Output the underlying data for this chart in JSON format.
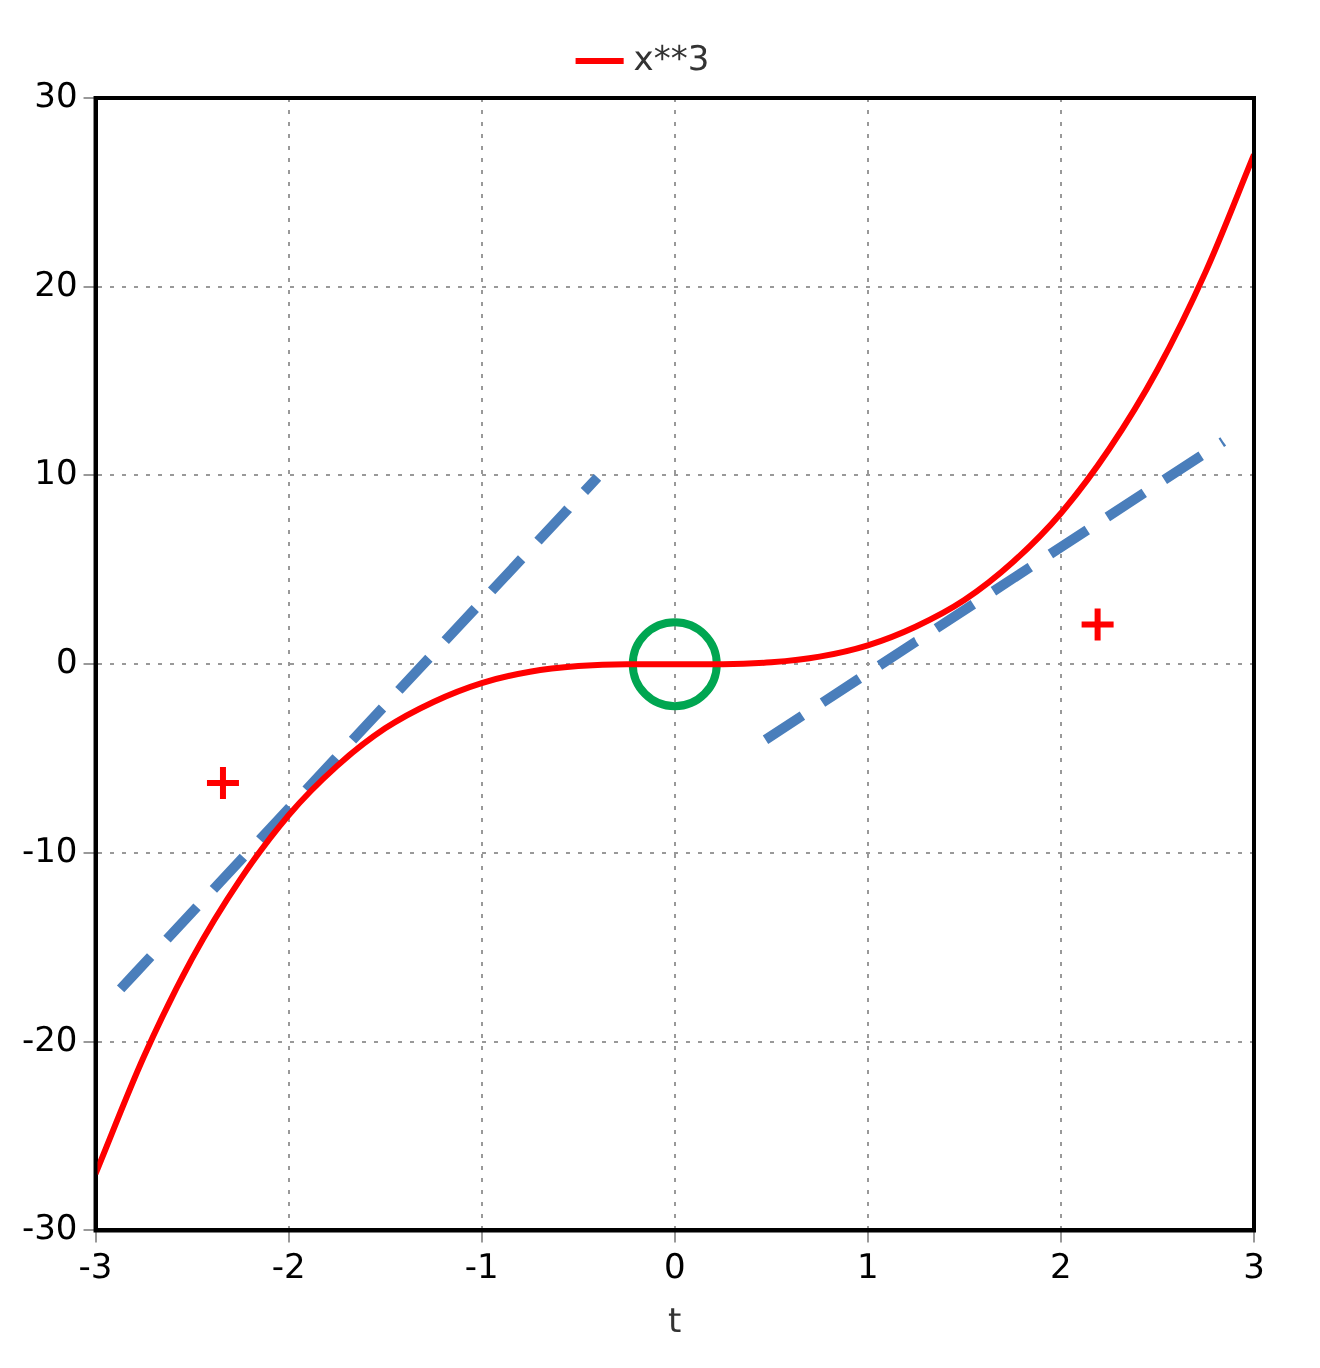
{
  "chart_data": {
    "type": "line",
    "xlabel": "t",
    "x": [
      -3,
      -2.75,
      -2.5,
      -2.25,
      -2,
      -1.75,
      -1.5,
      -1.25,
      -1,
      -0.75,
      -0.5,
      -0.25,
      0,
      0.25,
      0.5,
      0.75,
      1,
      1.25,
      1.5,
      1.75,
      2,
      2.25,
      2.5,
      2.75,
      3
    ],
    "series": [
      {
        "name": "x**3",
        "color": "#ff0000",
        "values": [
          -27,
          -20.8,
          -15.6,
          -11.4,
          -8,
          -5.4,
          -3.4,
          -2,
          -1,
          -0.4,
          -0.1,
          0,
          0,
          0,
          0.1,
          0.4,
          1,
          2,
          3.4,
          5.4,
          8,
          11.4,
          15.6,
          20.8,
          27
        ]
      },
      {
        "type": "line",
        "color": "#4a7ebb",
        "line_style": "dashed",
        "x": [
          -2.87,
          -0.4
        ],
        "values": [
          -17.2,
          9.9
        ]
      },
      {
        "type": "line",
        "color": "#4a7ebb",
        "line_style": "dashed",
        "x": [
          0.47,
          2.84
        ],
        "values": [
          -4,
          11.8
        ]
      },
      {
        "type": "scatter",
        "color": "#ff0000",
        "marker": "cross",
        "x": [
          -2.34,
          2.19
        ],
        "values": [
          -6.3,
          2.1
        ]
      },
      {
        "type": "scatter",
        "color": "#00a651",
        "marker": "circle",
        "x": [
          0
        ],
        "values": [
          0
        ]
      }
    ],
    "xlim": [
      -3,
      3
    ],
    "xticks": [
      -3,
      -2,
      -1,
      0,
      1,
      2,
      3
    ],
    "ylim": [
      -30,
      30
    ],
    "yticks": [
      -30,
      -20,
      -10,
      0,
      10,
      20,
      30
    ],
    "grid": true,
    "legend": "top",
    "line_style": "solid",
    "marker": "none"
  }
}
